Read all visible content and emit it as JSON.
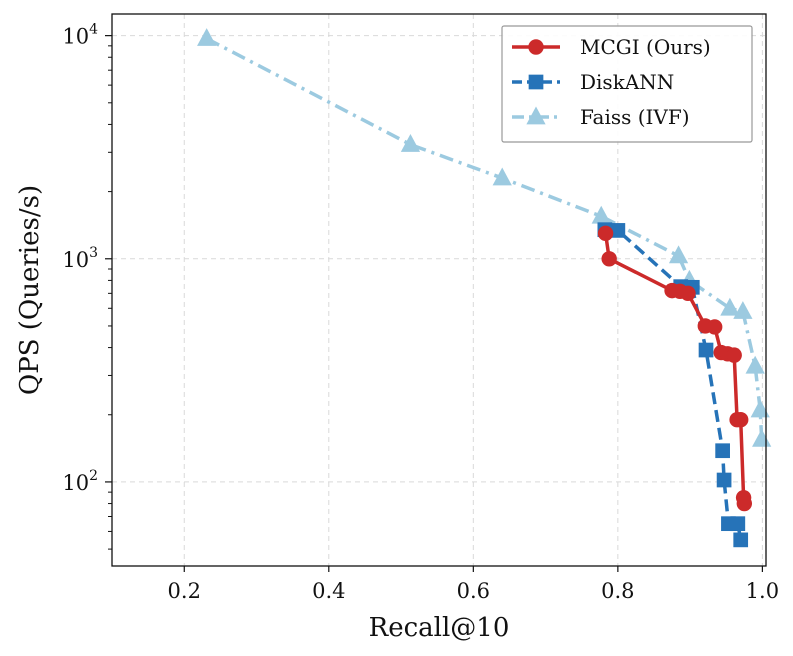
{
  "chart_data": {
    "type": "line",
    "title": "",
    "xlabel": "Recall@10",
    "ylabel": "QPS (Queries/s)",
    "xlim": [
      0.1,
      1.005
    ],
    "ylim": [
      42,
      12500
    ],
    "yscale": "log",
    "grid": true,
    "legend_position": "top-right",
    "xticks": [
      0.2,
      0.4,
      0.6,
      0.8,
      1.0
    ],
    "xtick_labels": [
      "0.2",
      "0.4",
      "0.6",
      "0.8",
      "1.0"
    ],
    "yticks": [
      100,
      1000,
      10000
    ],
    "ytick_labels": [
      {
        "base": "10",
        "exp": "2"
      },
      {
        "base": "10",
        "exp": "3"
      },
      {
        "base": "10",
        "exp": "4"
      }
    ],
    "series": [
      {
        "name": "MCGI (Ours)",
        "color": "#cc2a2a",
        "marker": "circle",
        "linestyle": "solid",
        "points": [
          {
            "x": 0.783,
            "y": 1300
          },
          {
            "x": 0.788,
            "y": 1000
          },
          {
            "x": 0.875,
            "y": 720
          },
          {
            "x": 0.886,
            "y": 715
          },
          {
            "x": 0.897,
            "y": 700
          },
          {
            "x": 0.921,
            "y": 500
          },
          {
            "x": 0.934,
            "y": 495
          },
          {
            "x": 0.943,
            "y": 380
          },
          {
            "x": 0.952,
            "y": 375
          },
          {
            "x": 0.961,
            "y": 370
          },
          {
            "x": 0.965,
            "y": 190
          },
          {
            "x": 0.97,
            "y": 190
          },
          {
            "x": 0.974,
            "y": 85
          },
          {
            "x": 0.975,
            "y": 80
          }
        ]
      },
      {
        "name": "DiskANN",
        "color": "#2673b8",
        "marker": "square",
        "linestyle": "dashed",
        "points": [
          {
            "x": 0.782,
            "y": 1350
          },
          {
            "x": 0.8,
            "y": 1340
          },
          {
            "x": 0.887,
            "y": 750
          },
          {
            "x": 0.903,
            "y": 745
          },
          {
            "x": 0.922,
            "y": 390
          },
          {
            "x": 0.945,
            "y": 138
          },
          {
            "x": 0.947,
            "y": 102
          },
          {
            "x": 0.953,
            "y": 65
          },
          {
            "x": 0.966,
            "y": 65
          },
          {
            "x": 0.97,
            "y": 55
          }
        ]
      },
      {
        "name": "Faiss (IVF)",
        "color": "#9ccae0",
        "marker": "triangle",
        "linestyle": "dashdot",
        "points": [
          {
            "x": 0.231,
            "y": 9700
          },
          {
            "x": 0.513,
            "y": 3250
          },
          {
            "x": 0.64,
            "y": 2300
          },
          {
            "x": 0.777,
            "y": 1550
          },
          {
            "x": 0.884,
            "y": 1030
          },
          {
            "x": 0.899,
            "y": 800
          },
          {
            "x": 0.955,
            "y": 600
          },
          {
            "x": 0.973,
            "y": 580
          },
          {
            "x": 0.99,
            "y": 330
          },
          {
            "x": 0.997,
            "y": 210
          },
          {
            "x": 0.999,
            "y": 155
          }
        ]
      }
    ]
  }
}
